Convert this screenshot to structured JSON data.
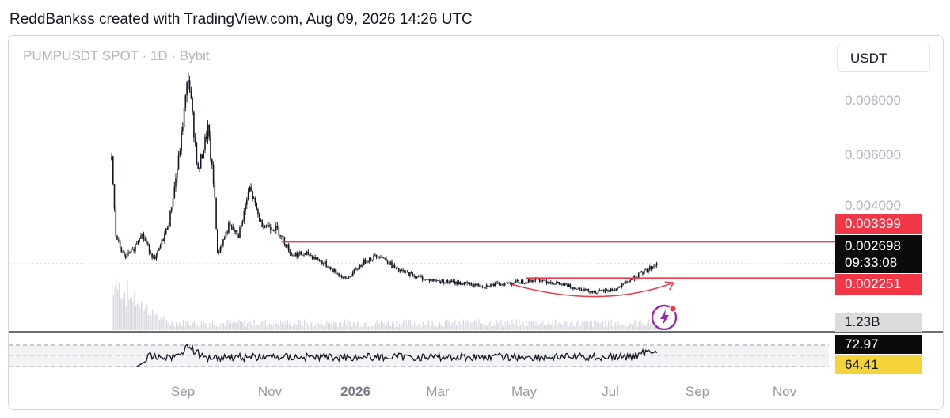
{
  "credit": "ReddBankss created with TradingView.com, Aug 09, 2026 14:26 UTC",
  "chart_data": {
    "type": "candlestick",
    "title": "PUMPUSDT SPOT · 1D · Bybit",
    "currency": "USDT",
    "y_ticks": [
      "0.008000",
      "0.006000",
      "0.004000"
    ],
    "partial_tick": "000",
    "ylim": [
      0.0015,
      0.0092
    ],
    "x_ticks": [
      "Sep",
      "Nov",
      "2026",
      "Mar",
      "May",
      "Jul",
      "Sep",
      "Nov"
    ],
    "x_range": [
      "2025-07-14",
      "2026-11-20"
    ],
    "price_series": [
      {
        "date": "2025-07-14",
        "value": 0.006
      },
      {
        "date": "2025-07-17",
        "value": 0.0036
      },
      {
        "date": "2025-07-23",
        "value": 0.0029
      },
      {
        "date": "2025-07-29",
        "value": 0.0031
      },
      {
        "date": "2025-08-04",
        "value": 0.0037
      },
      {
        "date": "2025-08-14",
        "value": 0.0028
      },
      {
        "date": "2025-08-24",
        "value": 0.004
      },
      {
        "date": "2025-08-31",
        "value": 0.006
      },
      {
        "date": "2025-09-07",
        "value": 0.0087
      },
      {
        "date": "2025-09-14",
        "value": 0.0056
      },
      {
        "date": "2025-09-21",
        "value": 0.007
      },
      {
        "date": "2025-09-26",
        "value": 0.0048
      },
      {
        "date": "2025-09-28",
        "value": 0.003
      },
      {
        "date": "2025-10-06",
        "value": 0.0039
      },
      {
        "date": "2025-10-13",
        "value": 0.0036
      },
      {
        "date": "2025-10-21",
        "value": 0.0051
      },
      {
        "date": "2025-10-29",
        "value": 0.004
      },
      {
        "date": "2025-11-10",
        "value": 0.0038
      },
      {
        "date": "2025-11-20",
        "value": 0.003
      },
      {
        "date": "2025-12-03",
        "value": 0.003
      },
      {
        "date": "2025-12-14",
        "value": 0.0027
      },
      {
        "date": "2025-12-29",
        "value": 0.0022
      },
      {
        "date": "2026-01-12",
        "value": 0.0028
      },
      {
        "date": "2026-01-22",
        "value": 0.003
      },
      {
        "date": "2026-02-04",
        "value": 0.0025
      },
      {
        "date": "2026-02-25",
        "value": 0.0022
      },
      {
        "date": "2026-03-18",
        "value": 0.0021
      },
      {
        "date": "2026-04-07",
        "value": 0.002
      },
      {
        "date": "2026-04-27",
        "value": 0.0021
      },
      {
        "date": "2026-05-17",
        "value": 0.0022
      },
      {
        "date": "2026-06-06",
        "value": 0.002
      },
      {
        "date": "2026-06-26",
        "value": 0.0018
      },
      {
        "date": "2026-07-11",
        "value": 0.0019
      },
      {
        "date": "2026-07-25",
        "value": 0.0023
      },
      {
        "date": "2026-08-09",
        "value": 0.0027
      }
    ],
    "resistance": {
      "price": 0.003399,
      "label": "0.003399",
      "from": "2025-11-13"
    },
    "last_price": {
      "price": 0.002698,
      "label": "0.002698",
      "countdown": "09:33:08"
    },
    "support": {
      "price": 0.002251,
      "label": "0.002251",
      "from": "2026-05-07"
    },
    "curve_annotation": {
      "from": "2026-04-27",
      "to": "2026-08-21",
      "low_date": "2026-06-30",
      "low_price": 0.0016,
      "color": "#e8414f"
    },
    "volume_label": "1.23B",
    "rsi": {
      "value": "72.97",
      "ma": "64.41",
      "upper_band": 70,
      "lower_band": 30
    },
    "colors": {
      "candle": "#131722",
      "line": "#e8414f",
      "tag_red": "#f23645",
      "tag_yellow": "#f5d33b",
      "volume": "#d6d8de"
    }
  }
}
